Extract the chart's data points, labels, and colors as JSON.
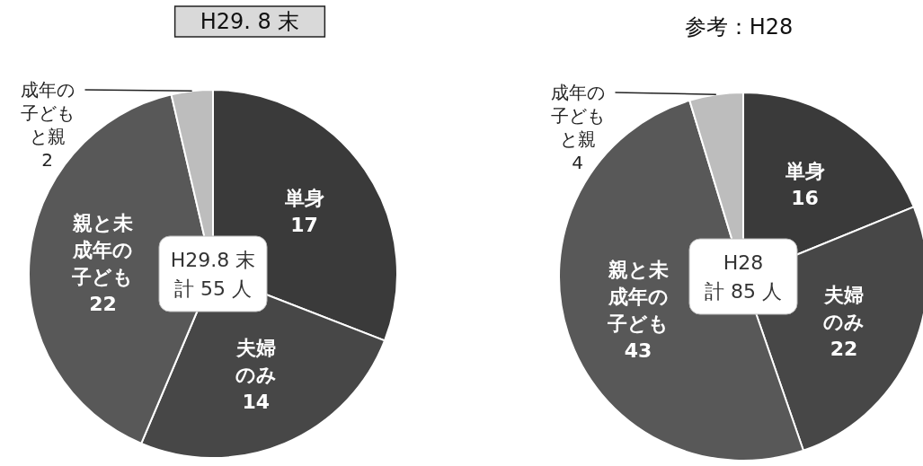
{
  "chart_data": [
    {
      "type": "pie",
      "title": "H29. 8 末",
      "categories": [
        "単身",
        "夫婦のみ",
        "親と未成年の子ども",
        "成年の子どもと親"
      ],
      "values": [
        17,
        14,
        22,
        2
      ],
      "colors": [
        "#3a3a3a",
        "#474747",
        "#585858",
        "#bdbdbd"
      ],
      "data_labels": true,
      "annotations": [
        "H29.8 末",
        "計 55 人"
      ]
    },
    {
      "type": "pie",
      "title": "参考：H28",
      "categories": [
        "単身",
        "夫婦のみ",
        "親と未成年の子ども",
        "成年の子どもと親"
      ],
      "values": [
        16,
        22,
        43,
        4
      ],
      "colors": [
        "#3a3a3a",
        "#474747",
        "#585858",
        "#bdbdbd"
      ],
      "data_labels": true,
      "annotations": [
        "H28",
        "計 85 人"
      ]
    }
  ]
}
